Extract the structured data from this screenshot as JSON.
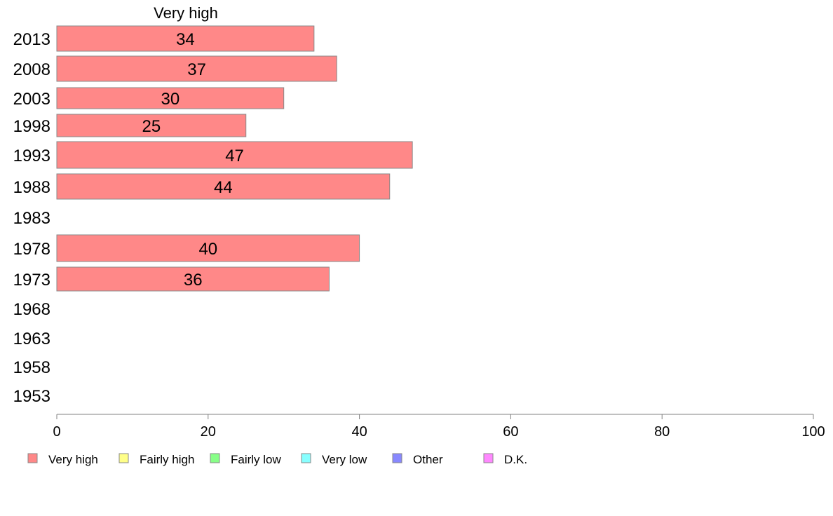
{
  "chart_data": {
    "type": "bar",
    "orientation": "horizontal",
    "title": "Very high",
    "categories": [
      "2013",
      "2008",
      "2003",
      "1998",
      "1993",
      "1988",
      "1983",
      "1978",
      "1973",
      "1968",
      "1963",
      "1958",
      "1953"
    ],
    "series": [
      {
        "name": "Very high",
        "color": "#ff8888",
        "values": [
          34,
          37,
          30,
          25,
          47,
          44,
          null,
          40,
          36,
          null,
          null,
          null,
          null
        ]
      }
    ],
    "xlim": [
      0,
      100
    ],
    "xticks": [
      0,
      20,
      40,
      60,
      80,
      100
    ],
    "grid": false,
    "legend_position": "bottom",
    "legend": [
      {
        "label": "Very high",
        "color": "#ff8888"
      },
      {
        "label": "Fairly high",
        "color": "#ffff88"
      },
      {
        "label": "Fairly low",
        "color": "#88ff88"
      },
      {
        "label": "Very low",
        "color": "#88ffff"
      },
      {
        "label": "Other",
        "color": "#8888ff"
      },
      {
        "label": "D.K.",
        "color": "#ff88ff"
      }
    ]
  }
}
